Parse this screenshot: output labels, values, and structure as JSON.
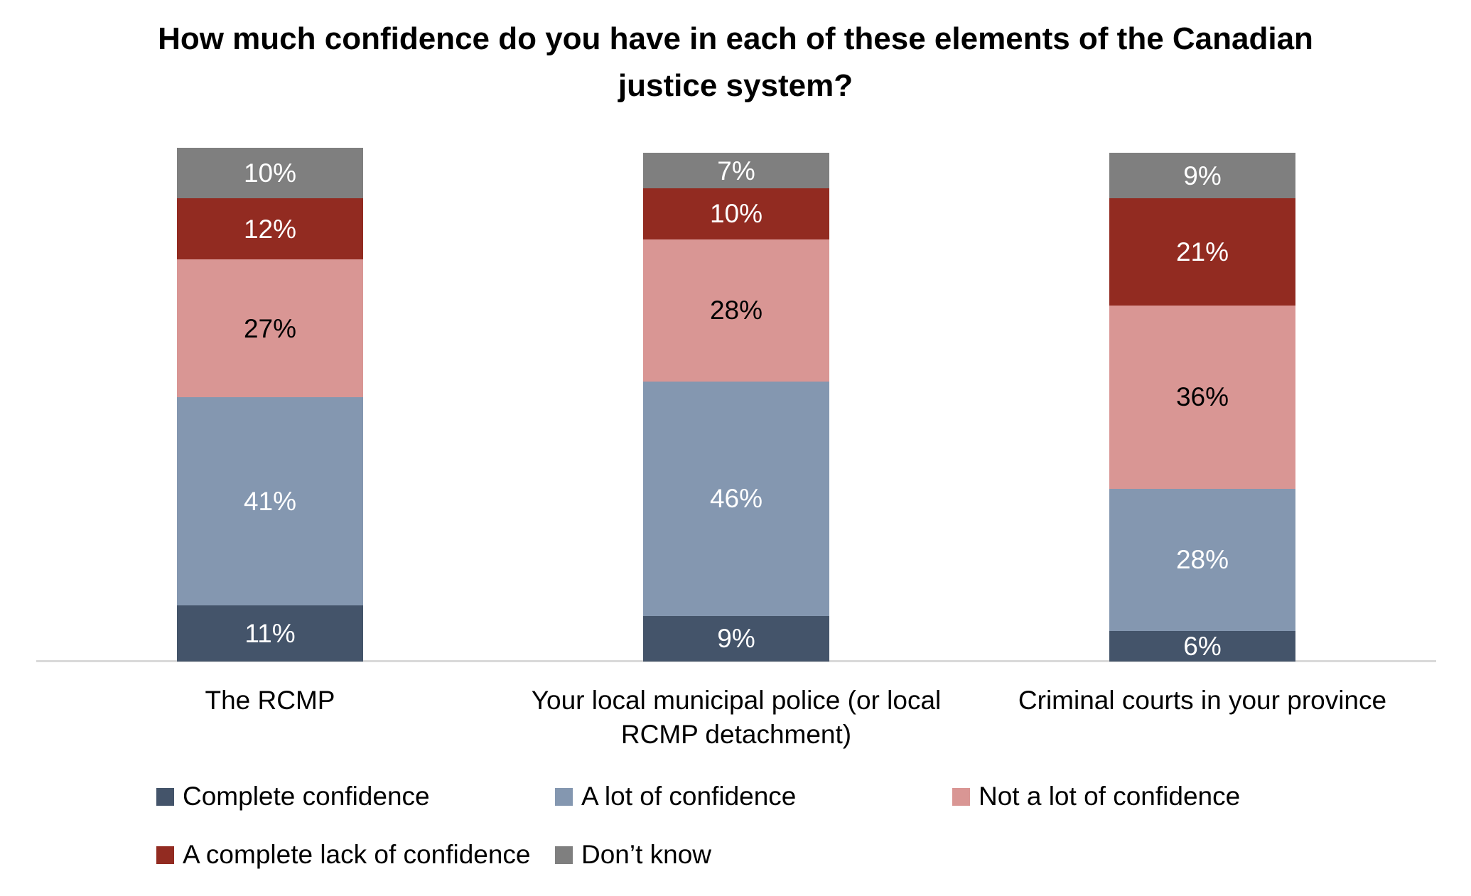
{
  "chart_data": {
    "type": "bar",
    "stacked": true,
    "title": "How much confidence do you have in each of these elements of the Canadian justice system?",
    "categories": [
      "The RCMP",
      "Your local municipal police (or local RCMP detachment)",
      "Criminal courts in your province"
    ],
    "series": [
      {
        "name": "Complete confidence",
        "color": "#44546A",
        "label_color": "#ffffff",
        "values": [
          11,
          9,
          6
        ]
      },
      {
        "name": "A lot of confidence",
        "color": "#8497B0",
        "label_color": "#ffffff",
        "values": [
          41,
          46,
          28
        ]
      },
      {
        "name": "Not a lot of confidence",
        "color": "#D99694",
        "label_color": "#000000",
        "values": [
          27,
          28,
          36
        ]
      },
      {
        "name": "A complete lack of confidence",
        "color": "#922B21",
        "label_color": "#ffffff",
        "values": [
          12,
          10,
          21
        ]
      },
      {
        "name": "Don’t know",
        "color": "#7F7F7F",
        "label_color": "#ffffff",
        "values": [
          10,
          7,
          9
        ]
      }
    ],
    "value_suffix": "%",
    "ylim": [
      0,
      100
    ],
    "grid": false,
    "legend_position": "bottom",
    "axis_line_color": "#D9D9D9",
    "background_color": "#FFFFFF"
  }
}
